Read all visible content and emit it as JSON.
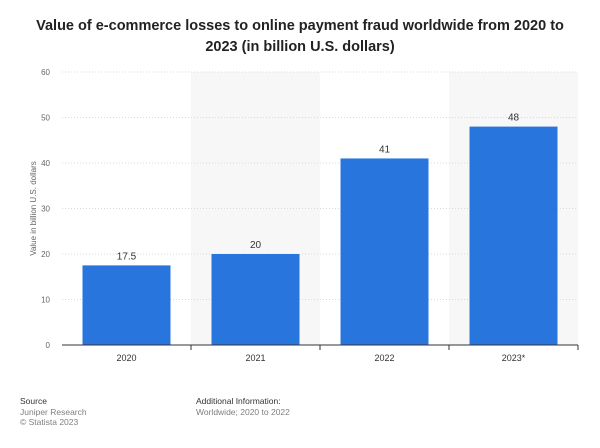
{
  "chart_data": {
    "type": "bar",
    "title": "Value of e-commerce losses to online payment fraud worldwide from 2020 to 2023 (in billion U.S. dollars)",
    "categories": [
      "2020",
      "2021",
      "2022",
      "2023*"
    ],
    "values": [
      17.5,
      20,
      41,
      48
    ],
    "value_labels": [
      "17.5",
      "20",
      "41",
      "48"
    ],
    "xlabel": "",
    "ylabel": "Value in billion U.S. dollars",
    "ylim": [
      0,
      60
    ],
    "yticks": [
      0,
      10,
      20,
      30,
      40,
      50,
      60
    ],
    "grid": true,
    "legend": "none",
    "bar_color": "#2876dd",
    "band_color": "#f7f7f7"
  },
  "footer": {
    "source_heading": "Source",
    "source_lines": [
      "Juniper Research",
      "© Statista 2023"
    ],
    "info_heading": "Additional Information:",
    "info_lines": [
      "Worldwide; 2020 to 2022"
    ]
  }
}
